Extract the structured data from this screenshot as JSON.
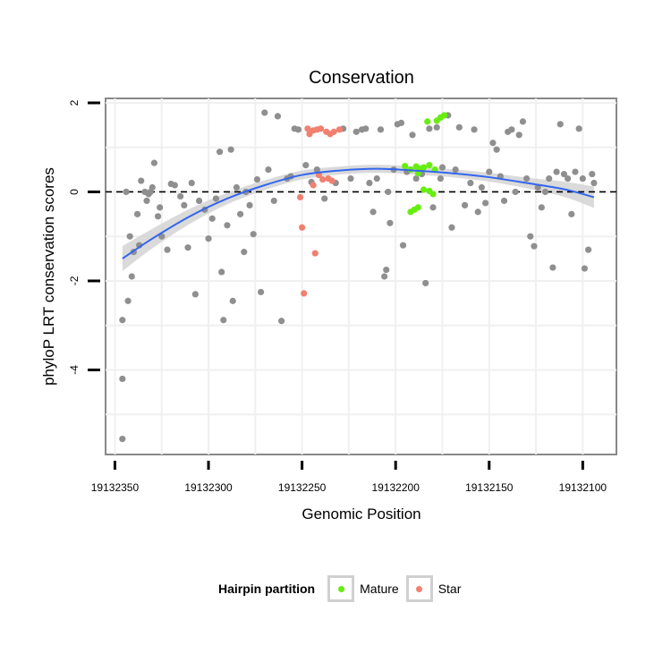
{
  "chart_data": {
    "type": "scatter",
    "title": "Conservation",
    "xlabel": "Genomic Position",
    "ylabel": "phyloP LRT conservation scores",
    "x_reversed": true,
    "xlim": [
      19132355,
      19132082
    ],
    "ylim": [
      -5.9,
      2.1
    ],
    "x_ticks": [
      19132350,
      19132300,
      19132250,
      19132200,
      19132150,
      19132100
    ],
    "x_tick_labels": [
      "19132350",
      "19132300",
      "19132250",
      "19132200",
      "19132150",
      "19132100"
    ],
    "y_ticks": [
      2,
      0,
      -2,
      -4
    ],
    "y_tick_labels": [
      "2",
      "0",
      "-2",
      "-4"
    ],
    "reference_line": {
      "y": 0,
      "style": "dashed"
    },
    "legend": {
      "title": "Hairpin partition",
      "position": "bottom",
      "entries": [
        {
          "label": "Mature",
          "color": "#66ee11"
        },
        {
          "label": "Star",
          "color": "#f0806f"
        }
      ]
    },
    "colors": {
      "other": "#8f8f8f",
      "smooth": "#3366ee",
      "ribbon": "#d4d4d4",
      "panel": "#ffffff",
      "grid": "#f0f0f0"
    },
    "smooth_fit": {
      "method": "loess",
      "x": [
        19132346,
        19132330,
        19132310,
        19132290,
        19132270,
        19132250,
        19132230,
        19132210,
        19132190,
        19132170,
        19132150,
        19132130,
        19132110,
        19132094
      ],
      "y": [
        -1.5,
        -1.05,
        -0.55,
        -0.15,
        0.15,
        0.38,
        0.48,
        0.52,
        0.48,
        0.42,
        0.33,
        0.2,
        0.06,
        -0.12
      ],
      "ribbon_halfwidth": [
        0.28,
        0.22,
        0.17,
        0.13,
        0.11,
        0.1,
        0.09,
        0.09,
        0.09,
        0.09,
        0.1,
        0.12,
        0.17,
        0.24
      ]
    },
    "series": [
      {
        "name": "Mature",
        "points": [
          [
            19132183,
            1.58
          ],
          [
            19132178,
            1.6
          ],
          [
            19132176,
            1.67
          ],
          [
            19132174,
            1.72
          ],
          [
            19132195,
            0.58
          ],
          [
            19132192,
            0.5
          ],
          [
            19132189,
            0.57
          ],
          [
            19132187,
            0.52
          ],
          [
            19132185,
            0.55
          ],
          [
            19132182,
            0.6
          ],
          [
            19132179,
            0.5
          ],
          [
            19132188,
            0.42
          ],
          [
            19132185,
            0.05
          ],
          [
            19132182,
            0.02
          ],
          [
            19132180,
            -0.05
          ],
          [
            19132188,
            -0.35
          ],
          [
            19132190,
            -0.4
          ],
          [
            19132192,
            -0.45
          ]
        ]
      },
      {
        "name": "Star",
        "points": [
          [
            19132247,
            1.42
          ],
          [
            19132244,
            1.38
          ],
          [
            19132242,
            1.4
          ],
          [
            19132240,
            1.42
          ],
          [
            19132237,
            1.35
          ],
          [
            19132235,
            1.3
          ],
          [
            19132233,
            1.35
          ],
          [
            19132230,
            1.4
          ],
          [
            19132246,
            1.3
          ],
          [
            19132241,
            0.38
          ],
          [
            19132239,
            0.28
          ],
          [
            19132236,
            0.3
          ],
          [
            19132234,
            0.25
          ],
          [
            19132244,
            0.15
          ],
          [
            19132251,
            -0.12
          ],
          [
            19132250,
            -0.8
          ],
          [
            19132243,
            -1.38
          ],
          [
            19132249,
            -2.28
          ]
        ]
      },
      {
        "name": "",
        "points": [
          [
            19132346,
            -5.55
          ],
          [
            19132346,
            -4.2
          ],
          [
            19132346,
            -2.88
          ],
          [
            19132343,
            -2.45
          ],
          [
            19132341,
            -1.9
          ],
          [
            19132340,
            -1.35
          ],
          [
            19132342,
            -1.0
          ],
          [
            19132344,
            0.0
          ],
          [
            19132338,
            -0.5
          ],
          [
            19132337,
            -1.2
          ],
          [
            19132336,
            0.25
          ],
          [
            19132334,
            0.0
          ],
          [
            19132333,
            -0.2
          ],
          [
            19132332,
            -0.05
          ],
          [
            19132331,
            0.0
          ],
          [
            19132330,
            0.1
          ],
          [
            19132329,
            0.65
          ],
          [
            19132327,
            -0.55
          ],
          [
            19132326,
            -0.35
          ],
          [
            19132325,
            -1.0
          ],
          [
            19132322,
            -1.3
          ],
          [
            19132320,
            0.18
          ],
          [
            19132318,
            0.15
          ],
          [
            19132315,
            -0.1
          ],
          [
            19132313,
            -0.3
          ],
          [
            19132311,
            -1.25
          ],
          [
            19132309,
            0.2
          ],
          [
            19132307,
            -2.3
          ],
          [
            19132305,
            -0.2
          ],
          [
            19132302,
            -0.4
          ],
          [
            19132300,
            -1.05
          ],
          [
            19132298,
            -0.6
          ],
          [
            19132296,
            -0.15
          ],
          [
            19132294,
            0.9
          ],
          [
            19132293,
            -1.8
          ],
          [
            19132292,
            -2.88
          ],
          [
            19132290,
            -0.75
          ],
          [
            19132288,
            0.95
          ],
          [
            19132287,
            -2.45
          ],
          [
            19132285,
            0.1
          ],
          [
            19132283,
            -0.5
          ],
          [
            19132281,
            -1.35
          ],
          [
            19132280,
            0.0
          ],
          [
            19132278,
            -0.3
          ],
          [
            19132276,
            -0.95
          ],
          [
            19132274,
            0.28
          ],
          [
            19132272,
            -2.25
          ],
          [
            19132270,
            1.78
          ],
          [
            19132268,
            0.5
          ],
          [
            19132265,
            -0.2
          ],
          [
            19132263,
            1.7
          ],
          [
            19132261,
            -2.9
          ],
          [
            19132258,
            0.3
          ],
          [
            19132256,
            0.35
          ],
          [
            19132254,
            1.42
          ],
          [
            19132252,
            1.4
          ],
          [
            19132248,
            0.6
          ],
          [
            19132245,
            0.22
          ],
          [
            19132242,
            0.5
          ],
          [
            19132238,
            -0.15
          ],
          [
            19132232,
            0.2
          ],
          [
            19132228,
            1.42
          ],
          [
            19132224,
            0.3
          ],
          [
            19132221,
            1.35
          ],
          [
            19132218,
            1.4
          ],
          [
            19132216,
            1.42
          ],
          [
            19132214,
            0.2
          ],
          [
            19132212,
            -0.45
          ],
          [
            19132210,
            0.3
          ],
          [
            19132208,
            1.4
          ],
          [
            19132206,
            -1.9
          ],
          [
            19132205,
            -1.75
          ],
          [
            19132204,
            0.0
          ],
          [
            19132203,
            -0.7
          ],
          [
            19132201,
            0.5
          ],
          [
            19132199,
            1.52
          ],
          [
            19132197,
            1.55
          ],
          [
            19132196,
            -1.2
          ],
          [
            19132194,
            0.45
          ],
          [
            19132191,
            1.28
          ],
          [
            19132189,
            0.3
          ],
          [
            19132186,
            0.4
          ],
          [
            19132184,
            -2.05
          ],
          [
            19132182,
            1.42
          ],
          [
            19132180,
            -0.35
          ],
          [
            19132178,
            1.45
          ],
          [
            19132176,
            0.3
          ],
          [
            19132175,
            0.55
          ],
          [
            19132172,
            1.72
          ],
          [
            19132170,
            -0.8
          ],
          [
            19132168,
            0.5
          ],
          [
            19132166,
            1.45
          ],
          [
            19132163,
            -0.3
          ],
          [
            19132160,
            0.2
          ],
          [
            19132158,
            1.4
          ],
          [
            19132156,
            -0.45
          ],
          [
            19132154,
            0.1
          ],
          [
            19132152,
            -0.25
          ],
          [
            19132150,
            0.45
          ],
          [
            19132148,
            1.1
          ],
          [
            19132146,
            0.95
          ],
          [
            19132144,
            0.35
          ],
          [
            19132142,
            -0.2
          ],
          [
            19132140,
            1.35
          ],
          [
            19132138,
            1.4
          ],
          [
            19132136,
            0.0
          ],
          [
            19132134,
            1.28
          ],
          [
            19132132,
            1.58
          ],
          [
            19132130,
            0.3
          ],
          [
            19132128,
            -1.0
          ],
          [
            19132126,
            -1.22
          ],
          [
            19132124,
            0.1
          ],
          [
            19132122,
            -0.35
          ],
          [
            19132120,
            0.0
          ],
          [
            19132118,
            0.3
          ],
          [
            19132116,
            -1.7
          ],
          [
            19132114,
            0.45
          ],
          [
            19132112,
            1.52
          ],
          [
            19132110,
            0.4
          ],
          [
            19132108,
            0.3
          ],
          [
            19132106,
            -0.5
          ],
          [
            19132104,
            0.45
          ],
          [
            19132102,
            1.42
          ],
          [
            19132100,
            0.3
          ],
          [
            19132099,
            -1.72
          ],
          [
            19132097,
            -1.3
          ],
          [
            19132095,
            0.4
          ],
          [
            19132094,
            0.2
          ]
        ]
      }
    ]
  }
}
